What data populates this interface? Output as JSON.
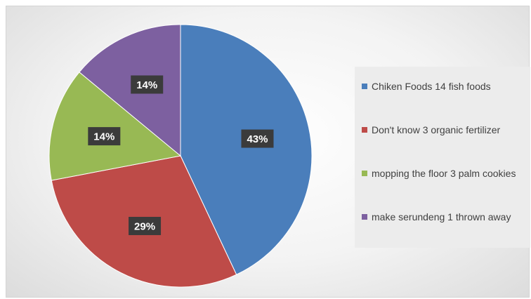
{
  "chart_data": {
    "type": "pie",
    "title": "",
    "slices": [
      {
        "label": "Chiken Foods 14 fish foods",
        "value": 43,
        "display": "43%",
        "color": "#4a7ebb"
      },
      {
        "label": "Don't know 3 organic fertilizer",
        "value": 29,
        "display": "29%",
        "color": "#be4b48"
      },
      {
        "label": "mopping the floor 3 palm cookies",
        "value": 14,
        "display": "14%",
        "color": "#98b954"
      },
      {
        "label": "make serundeng 1 thrown away",
        "value": 14,
        "display": "14%",
        "color": "#7d60a0"
      }
    ],
    "legend_position": "right"
  }
}
